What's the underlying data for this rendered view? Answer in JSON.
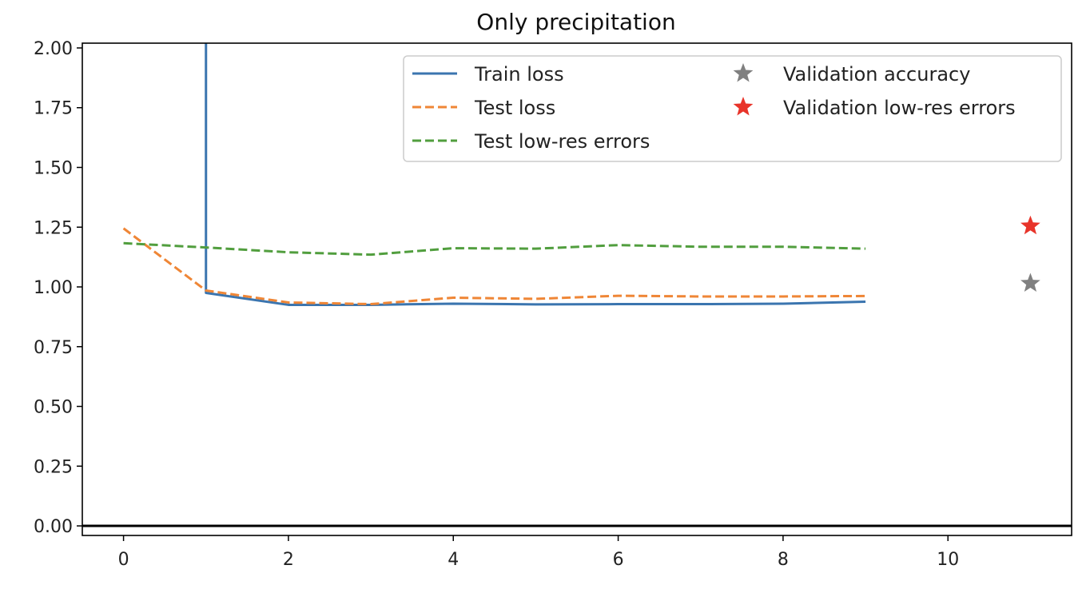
{
  "chart_data": {
    "type": "line",
    "title": "Only precipitation",
    "xlabel": "",
    "ylabel": "",
    "xlim": [
      -0.5,
      11.5
    ],
    "ylim": [
      -0.04,
      2.02
    ],
    "x_ticks": [
      0,
      2,
      4,
      6,
      8,
      10
    ],
    "x_tick_labels": [
      "0",
      "2",
      "4",
      "6",
      "8",
      "10"
    ],
    "y_ticks": [
      0.0,
      0.25,
      0.5,
      0.75,
      1.0,
      1.25,
      1.5,
      1.75,
      2.0
    ],
    "y_tick_labels": [
      "0.00",
      "0.25",
      "0.50",
      "0.75",
      "1.00",
      "1.25",
      "1.50",
      "1.75",
      "2.00"
    ],
    "horizontal_line": {
      "y": 0.0,
      "color": "#000000"
    },
    "grid": false,
    "legend_position": "top-right",
    "series": [
      {
        "name": "Train loss",
        "style": "solid",
        "color": "#3b75af",
        "x": [
          1,
          1,
          2,
          3,
          4,
          5,
          6,
          7,
          8,
          9
        ],
        "y": [
          2.02,
          0.975,
          0.925,
          0.925,
          0.93,
          0.927,
          0.928,
          0.928,
          0.93,
          0.938
        ]
      },
      {
        "name": "Test loss",
        "style": "dashed",
        "color": "#ef8636",
        "x": [
          0,
          1,
          2,
          3,
          4,
          5,
          6,
          7,
          8,
          9
        ],
        "y": [
          1.245,
          0.985,
          0.935,
          0.928,
          0.955,
          0.95,
          0.963,
          0.96,
          0.96,
          0.962
        ]
      },
      {
        "name": "Test low-res errors",
        "style": "dashed",
        "color": "#519e3e",
        "x": [
          0,
          1,
          2,
          3,
          4,
          5,
          6,
          7,
          8,
          9
        ],
        "y": [
          1.183,
          1.165,
          1.145,
          1.135,
          1.162,
          1.16,
          1.175,
          1.168,
          1.168,
          1.16
        ]
      }
    ],
    "points": [
      {
        "name": "Validation accuracy",
        "marker": "star",
        "color": "#808080",
        "x": 11,
        "y": 1.015
      },
      {
        "name": "Validation low-res errors",
        "marker": "star",
        "color": "#e8342a",
        "x": 11,
        "y": 1.255
      }
    ]
  }
}
